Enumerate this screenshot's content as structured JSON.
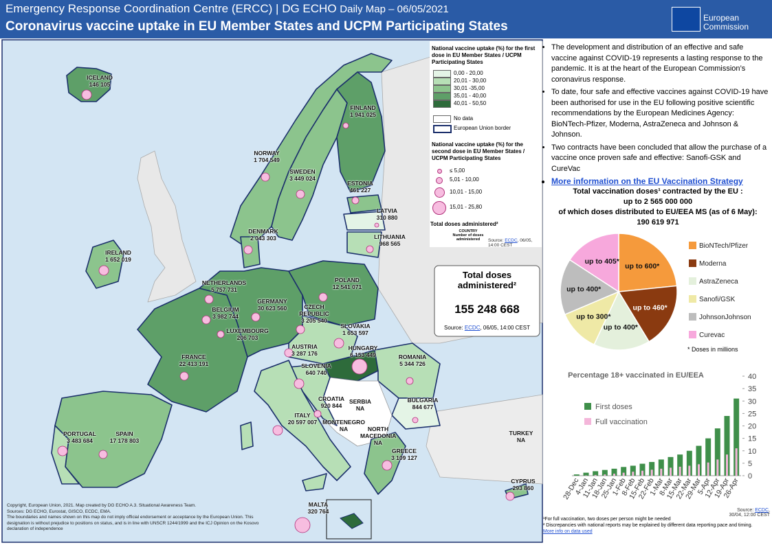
{
  "header": {
    "org": "Emergency Response Coordination Centre (ERCC) | DG ECHO",
    "daily": "Daily Map – 06/05/2021",
    "title": "Coronavirus vaccine uptake in EU Member States and UCPM Participating States",
    "logo": [
      "European",
      "Commission"
    ]
  },
  "legend": {
    "title_first": "National vaccine uptake (%) for the first dose in EU Member States / UCPM Participating States",
    "classes": [
      "0,00 - 20,00",
      "20,01 - 30,00",
      "30,01 -35,00",
      "35,01 - 40,00",
      "40,01 - 50,50"
    ],
    "colors": [
      "#e4f4e6",
      "#b7dfb6",
      "#8cc48d",
      "#5e9f68",
      "#2e6b3b"
    ],
    "no_data": "No data",
    "eu_border": "European Union border",
    "title_second": "National vaccine uptake (%) for the second dose in EU Member States / UCPM Participating States",
    "sizes": [
      "≤ 5,00",
      "5,01 - 10,00",
      "10,01 - 15,00",
      "15,01 - 25,80"
    ],
    "total_label": "Total doses administered²",
    "sample_country": "COUNTRY",
    "sample_doses": "Number of doses administered",
    "source_prefix": "Source: ",
    "source_link": "ECDC",
    "source_suffix": ", 06/05, 14:00 CEST"
  },
  "countries": [
    {
      "name": "ICELAND",
      "doses": "146 105"
    },
    {
      "name": "FINLAND",
      "doses": "1 941 025"
    },
    {
      "name": "NORWAY",
      "doses": "1 704 549"
    },
    {
      "name": "SWEDEN",
      "doses": "3 449 024"
    },
    {
      "name": "ESTONIA",
      "doses": "461 227"
    },
    {
      "name": "LATVIA",
      "doses": "310 880"
    },
    {
      "name": "LITHUANIA",
      "doses": "968 565"
    },
    {
      "name": "DENMARK",
      "doses": "2 043 303"
    },
    {
      "name": "IRELAND",
      "doses": "1 652 019"
    },
    {
      "name": "NETHERLANDS",
      "doses": "5 757 731"
    },
    {
      "name": "POLAND",
      "doses": "12 541 071"
    },
    {
      "name": "GERMANY",
      "doses": "30 623 560"
    },
    {
      "name": "BELGIUM",
      "doses": "3 982 744"
    },
    {
      "name": "CZECH REPUBLIC",
      "doses": "3 205 540"
    },
    {
      "name": "SLOVAKIA",
      "doses": "1 653 597"
    },
    {
      "name": "LUXEMBOURG",
      "doses": "206 703"
    },
    {
      "name": "AUSTRIA",
      "doses": "3 287 176"
    },
    {
      "name": "HUNGARY",
      "doses": "6 153 449"
    },
    {
      "name": "FRANCE",
      "doses": "22 413 191"
    },
    {
      "name": "ROMANIA",
      "doses": "5 344 726"
    },
    {
      "name": "SLOVENIA",
      "doses": "640 740"
    },
    {
      "name": "CROATIA",
      "doses": "920 844"
    },
    {
      "name": "SERBIA",
      "doses": "NA"
    },
    {
      "name": "BULGARIA",
      "doses": "844 677"
    },
    {
      "name": "ITALY",
      "doses": "20 597 007"
    },
    {
      "name": "MONTENEGRO",
      "doses": "NA"
    },
    {
      "name": "PORTUGAL",
      "doses": "3 483 684"
    },
    {
      "name": "SPAIN",
      "doses": "17 178 803"
    },
    {
      "name": "NORTH MACEDONIA",
      "doses": "NA"
    },
    {
      "name": "TURKEY",
      "doses": "NA"
    },
    {
      "name": "GREECE",
      "doses": "3 109 127"
    },
    {
      "name": "CYPRUS",
      "doses": "293 860"
    },
    {
      "name": "MALTA",
      "doses": "320 764"
    }
  ],
  "total": {
    "label": "Total doses administered²",
    "value": "155 248 668",
    "source_prefix": "Source: ",
    "source_link": "ECDC",
    "source_suffix": ", 06/05, 14:00 CEST"
  },
  "copyright": [
    "Copyright, European Union, 2021. Map created by DG ECHO A.3. Situational Awareness Team.",
    "Sources: DG ECHO, Eurostat, GISCO, ECDC, EMA.",
    "The boundaries and names shown on this map do not imply official endorsement or acceptance by the European Union. This designation is without prejudice to positions on status, and is in line with UNSCR 1244/1999 and the ICJ Opinion on the Kosovo declaration of independence"
  ],
  "info": {
    "bullets": [
      "The development and distribution of an effective and safe vaccine against COVID-19 represents a lasting response to the pandemic. It is at the heart of the European Commission’s coronavirus response.",
      "To date, four safe and effective vaccines against COVID-19 have been authorised for use in the EU following positive scientific recommendations by the European Medicines Agency: BioNTech-Pfizer, Moderna, AstraZeneca and Johnson & Johnson.",
      "Two contracts have been concluded that allow the purchase of a vaccine once proven safe and effective: Sanofi-GSK and CureVac"
    ],
    "link": "More information on the EU Vaccination Strategy"
  },
  "chart_data": [
    {
      "type": "pie",
      "title": [
        "Total vaccination  doses¹ contracted by the EU :",
        "up to 2 565 000 000",
        "of which doses distributed to EU/EEA MS (as of 6 May):",
        "190 619 971"
      ],
      "categories": [
        "BioNTech/Pfizer",
        "Moderna",
        "AstraZeneca",
        "Sanofi/GSK",
        "JohnsonJohnson",
        "Curevac"
      ],
      "values": [
        600,
        460,
        400,
        300,
        400,
        405
      ],
      "value_labels": [
        "up to 600*",
        "up to 460*",
        "up to 400*",
        "up to 300*",
        "up to 400*",
        "up to 405*"
      ],
      "colors": [
        "#f59a3c",
        "#8a3a10",
        "#e4f0dc",
        "#efe9a6",
        "#bdbdbd",
        "#f7a8dc"
      ],
      "note": "* Doses in millions"
    },
    {
      "type": "bar",
      "title": "Percentage 18+ vaccinated  in EU/EEA",
      "categories": [
        "28-Dec",
        "4-Jan",
        "11-Jan",
        "18-Jan",
        "25-Jan",
        "1-Feb",
        "8-Feb",
        "15-Feb",
        "22-Feb",
        "1-Mar",
        "8-Mar",
        "15-Mar",
        "22-Mar",
        "29-Mar",
        "5-Apr",
        "12-Apr",
        "19-Apr",
        "26-Apr"
      ],
      "series": [
        {
          "name": "First doses",
          "color": "#3f8f4a",
          "values": [
            0.5,
            1.2,
            1.8,
            2.3,
            2.8,
            3.5,
            4,
            4.8,
            5.5,
            6.5,
            7.5,
            8.5,
            10,
            12,
            15,
            19,
            24,
            31
          ]
        },
        {
          "name": "Full vaccination",
          "color": "#f4b6da",
          "values": [
            0,
            0.1,
            0.3,
            0.5,
            0.8,
            1.2,
            1.6,
            2,
            2.4,
            2.8,
            3.2,
            3.6,
            4,
            4.6,
            5.3,
            6.5,
            8.5,
            11
          ]
        }
      ],
      "ylim": [
        0,
        40
      ],
      "yticks": [
        0,
        5,
        10,
        15,
        20,
        25,
        30,
        35,
        40
      ],
      "legend": "upper left",
      "source_prefix": "Source: ",
      "source_link": "ECDC",
      "source_suffix": ",",
      "source_date": "30/04, 12:00 CEST"
    }
  ],
  "footnotes": [
    "¹For full vaccination, two doses per person might be needed",
    "² Discrepancies with national reports may be explained by different data reporting pace and timing.",
    "More info on data used"
  ]
}
